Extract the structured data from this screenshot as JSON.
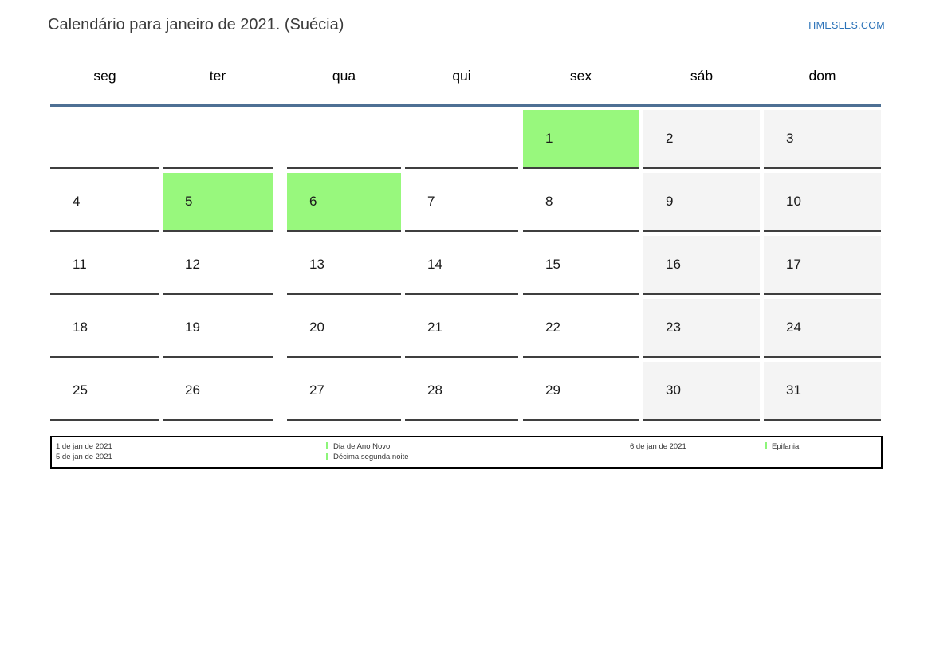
{
  "header": {
    "title": "Calendário para janeiro de 2021. (Suécia)",
    "site": "TIMESLES.COM"
  },
  "weekdays": [
    "seg",
    "ter",
    "qua",
    "qui",
    "sex",
    "sáb",
    "dom"
  ],
  "month": {
    "weeks": [
      [
        "",
        "",
        "",
        "",
        "1",
        "2",
        "3"
      ],
      [
        "4",
        "5",
        "6",
        "7",
        "8",
        "9",
        "10"
      ],
      [
        "11",
        "12",
        "13",
        "14",
        "15",
        "16",
        "17"
      ],
      [
        "18",
        "19",
        "20",
        "21",
        "22",
        "23",
        "24"
      ],
      [
        "25",
        "26",
        "27",
        "28",
        "29",
        "30",
        "31"
      ]
    ],
    "holidays": [
      1,
      5,
      6
    ],
    "weekend_days": [
      2,
      3,
      9,
      10,
      16,
      17,
      23,
      24,
      30,
      31
    ]
  },
  "legend": {
    "groups": [
      {
        "rows": [
          {
            "date": "1 de jan de 2021",
            "name": "Dia de Ano Novo"
          },
          {
            "date": "5 de jan de 2021",
            "name": "Décima segunda noite"
          }
        ]
      },
      {
        "rows": [
          {
            "date": "6 de jan de 2021",
            "name": "Epifania"
          }
        ]
      }
    ]
  },
  "colors": {
    "holiday_cell": "#98f87d",
    "weekend_cell": "#f4f4f4",
    "header_rule": "#4e7094",
    "site_link": "#2b72b8",
    "legend_marker": "#8df57a"
  }
}
